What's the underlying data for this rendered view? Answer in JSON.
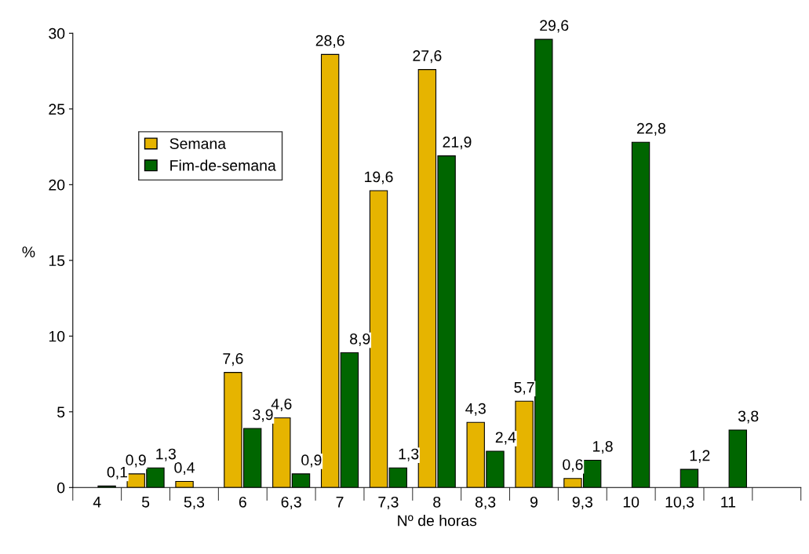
{
  "chart_data": {
    "type": "bar",
    "xlabel": "Nº de horas",
    "ylabel": "%",
    "categories": [
      "4",
      "5",
      "5,3",
      "6",
      "6,3",
      "7",
      "7,3",
      "8",
      "8,3",
      "9",
      "9,3",
      "10",
      "10,3",
      "11",
      null
    ],
    "series": [
      {
        "name": "Semana",
        "color": "#e6b400",
        "values": [
          null,
          0.9,
          0.4,
          7.6,
          4.6,
          28.6,
          19.6,
          27.6,
          4.3,
          5.7,
          0.6,
          null,
          null,
          null,
          null
        ],
        "value_labels": [
          null,
          "0,9",
          "0,4",
          "7,6",
          "4,6",
          "28,6",
          "19,6",
          "27,6",
          "4,3",
          "5,7",
          "0,6",
          null,
          null,
          null,
          null
        ]
      },
      {
        "name": "Fim-de-semana",
        "color": "#006600",
        "values": [
          0.1,
          1.3,
          null,
          3.9,
          0.9,
          8.9,
          1.3,
          21.9,
          2.4,
          29.6,
          1.8,
          22.8,
          1.2,
          3.8,
          null
        ],
        "value_labels": [
          "0,1",
          "1,3",
          null,
          "3,9",
          "0,9",
          "8,9",
          "1,3",
          "21,9",
          "2,4",
          "29,6",
          "1,8",
          "22,8",
          "1,2",
          "3,8",
          null
        ]
      }
    ],
    "ylim": [
      0,
      30
    ],
    "yticks": [
      0,
      5,
      10,
      15,
      20,
      25,
      30
    ],
    "grid": false,
    "legend": "top left"
  }
}
